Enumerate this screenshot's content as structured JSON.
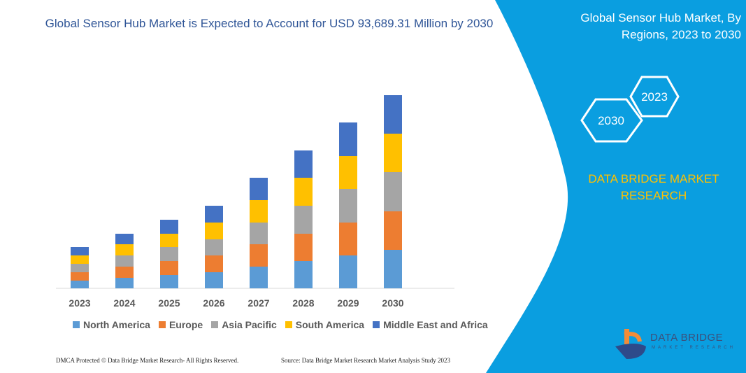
{
  "title": "Global Sensor Hub Market is Expected to Account for USD 93,689.31 Million by 2030",
  "side_panel": {
    "title": "Global Sensor Hub Market, By Regions, 2023 to 2030",
    "hex_labels": [
      "2023",
      "2030"
    ],
    "brand": "DATA BRIDGE MARKET RESEARCH",
    "logo_text": "DATA BRIDGE",
    "logo_sub": "MARKET RESEARCH"
  },
  "footer": {
    "left": "DMCA Protected © Data Bridge Market Research- All Rights Reserved.",
    "right": "Source: Data Bridge Market Research Market Analysis Study 2023"
  },
  "colors": {
    "panel": "#0a9ee0",
    "title": "#2f5597"
  },
  "chart_data": {
    "type": "bar",
    "stacked": true,
    "categories": [
      "2023",
      "2024",
      "2025",
      "2026",
      "2027",
      "2028",
      "2029",
      "2030"
    ],
    "series": [
      {
        "name": "North America",
        "color": "#5b9bd5",
        "values": [
          11,
          15,
          19,
          23,
          31,
          39,
          47,
          55
        ]
      },
      {
        "name": "Europe",
        "color": "#ed7d31",
        "values": [
          12,
          16,
          20,
          24,
          32,
          39,
          47,
          55
        ]
      },
      {
        "name": "Asia Pacific",
        "color": "#a5a5a5",
        "values": [
          12,
          16,
          20,
          23,
          31,
          40,
          48,
          56
        ]
      },
      {
        "name": "South America",
        "color": "#ffc000",
        "values": [
          12,
          16,
          19,
          24,
          32,
          40,
          47,
          55
        ]
      },
      {
        "name": "Middle East and Africa",
        "color": "#4472c4",
        "values": [
          12,
          15,
          20,
          24,
          32,
          39,
          48,
          55
        ]
      }
    ],
    "yaxis_visible": false,
    "grid": false,
    "legend_placement": "bottom"
  }
}
